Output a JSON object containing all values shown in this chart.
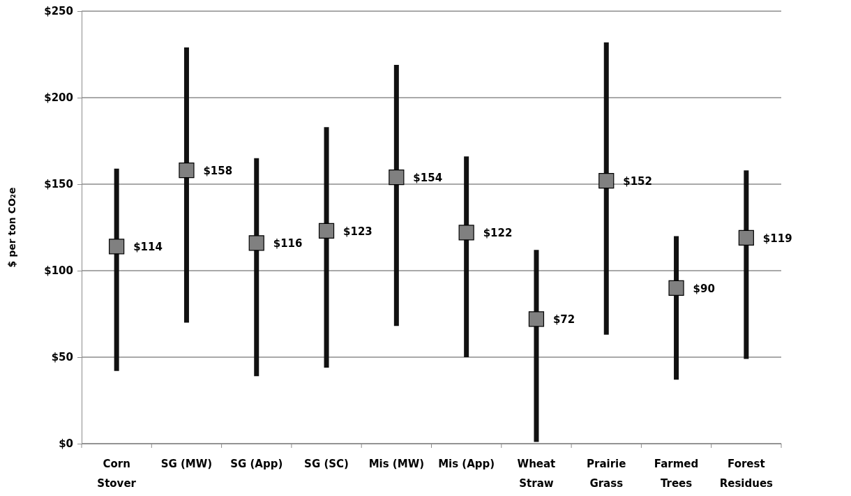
{
  "chart_data": {
    "type": "scatter",
    "ylabel": "$ per ton CO₂e",
    "categories": [
      "Corn Stover",
      "SG (MW)",
      "SG (App)",
      "SG (SC)",
      "Mis (MW)",
      "Mis (App)",
      "Wheat Straw",
      "Prairie Grass",
      "Farmed Trees",
      "Forest Residues"
    ],
    "values": [
      114,
      158,
      116,
      123,
      154,
      122,
      72,
      152,
      90,
      119
    ],
    "errors": [
      [
        42,
        159
      ],
      [
        70,
        229
      ],
      [
        39,
        165
      ],
      [
        44,
        183
      ],
      [
        68,
        219
      ],
      [
        50,
        166
      ],
      [
        1,
        112
      ],
      [
        63,
        232
      ],
      [
        37,
        120
      ],
      [
        49,
        158
      ]
    ],
    "value_labels": [
      "$114",
      "$158",
      "$116",
      "$123",
      "$154",
      "$122",
      "$72",
      "$152",
      "$90",
      "$119"
    ],
    "color": "#808080",
    "marker": "square",
    "ylim": [
      0,
      250
    ],
    "yticks": [
      {
        "value": 0,
        "label": "$0"
      },
      {
        "value": 50,
        "label": "$50"
      },
      {
        "value": 100,
        "label": "$100"
      },
      {
        "value": 150,
        "label": "$150"
      },
      {
        "value": 200,
        "label": "$200"
      },
      {
        "value": 250,
        "label": "$250"
      }
    ],
    "grid": "y"
  }
}
